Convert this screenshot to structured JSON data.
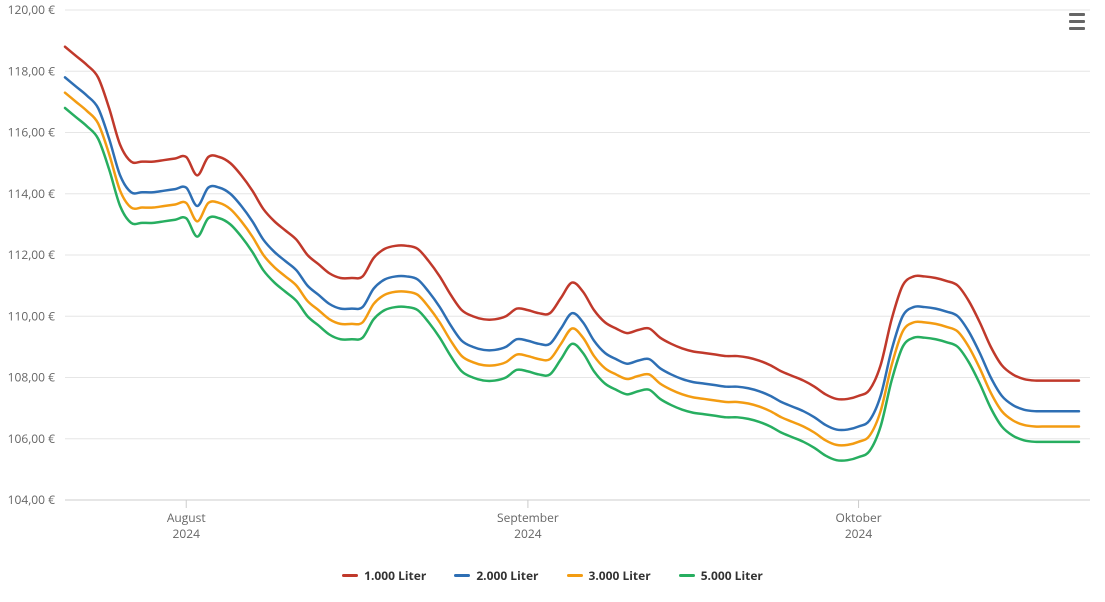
{
  "chart": {
    "type": "line",
    "background": "#ffffff",
    "grid_color": "#e6e6e6",
    "axis_color": "#cccccc",
    "line_width": 2.5,
    "font_family": "Open Sans, Segoe UI, Arial, sans-serif",
    "tick_color": "#666666",
    "tick_fontsize": 12,
    "legend_fontsize": 12,
    "legend_fontweight": 700,
    "legend_color": "#333333",
    "y": {
      "min": 104,
      "max": 120,
      "step": 2,
      "labels": [
        "104,00 €",
        "106,00 €",
        "108,00 €",
        "110,00 €",
        "112,00 €",
        "114,00 €",
        "116,00 €",
        "118,00 €",
        "120,00 €"
      ]
    },
    "x": {
      "min": 0,
      "max": 93,
      "ticks": [
        {
          "pos": 11,
          "month": "August",
          "year": "2024"
        },
        {
          "pos": 42,
          "month": "September",
          "year": "2024"
        },
        {
          "pos": 72,
          "month": "Oktober",
          "year": "2024"
        }
      ]
    },
    "series": [
      {
        "name": "1.000 Liter",
        "color": "#c0392b",
        "data": [
          118.8,
          118.5,
          118.2,
          117.8,
          116.8,
          115.6,
          115.05,
          115.05,
          115.05,
          115.1,
          115.15,
          115.2,
          114.6,
          115.2,
          115.2,
          115.0,
          114.6,
          114.1,
          113.5,
          113.1,
          112.8,
          112.5,
          112.0,
          111.7,
          111.4,
          111.25,
          111.25,
          111.3,
          111.9,
          112.2,
          112.3,
          112.3,
          112.2,
          111.8,
          111.3,
          110.7,
          110.2,
          110.0,
          109.9,
          109.9,
          110.0,
          110.25,
          110.2,
          110.1,
          110.1,
          110.6,
          111.1,
          110.8,
          110.2,
          109.8,
          109.6,
          109.45,
          109.55,
          109.6,
          109.3,
          109.1,
          108.95,
          108.85,
          108.8,
          108.75,
          108.7,
          108.7,
          108.65,
          108.55,
          108.4,
          108.2,
          108.05,
          107.9,
          107.7,
          107.45,
          107.3,
          107.3,
          107.4,
          107.6,
          108.4,
          109.9,
          111.0,
          111.3,
          111.3,
          111.25,
          111.15,
          111.0,
          110.5,
          109.8,
          109.0,
          108.4,
          108.1,
          107.95,
          107.9,
          107.9,
          107.9,
          107.9,
          107.9
        ]
      },
      {
        "name": "2.000 Liter",
        "color": "#2e6fb4",
        "data": [
          117.8,
          117.5,
          117.2,
          116.8,
          115.8,
          114.6,
          114.05,
          114.05,
          114.05,
          114.1,
          114.15,
          114.2,
          113.6,
          114.2,
          114.2,
          114.0,
          113.6,
          113.1,
          112.5,
          112.1,
          111.8,
          111.5,
          111.0,
          110.7,
          110.4,
          110.25,
          110.25,
          110.3,
          110.9,
          111.2,
          111.3,
          111.3,
          111.2,
          110.8,
          110.3,
          109.7,
          109.2,
          109.0,
          108.9,
          108.9,
          109.0,
          109.25,
          109.2,
          109.1,
          109.1,
          109.6,
          110.1,
          109.8,
          109.2,
          108.8,
          108.6,
          108.45,
          108.55,
          108.6,
          108.3,
          108.1,
          107.95,
          107.85,
          107.8,
          107.75,
          107.7,
          107.7,
          107.65,
          107.55,
          107.4,
          107.2,
          107.05,
          106.9,
          106.7,
          106.45,
          106.3,
          106.3,
          106.4,
          106.6,
          107.4,
          108.9,
          110.0,
          110.3,
          110.3,
          110.25,
          110.15,
          110.0,
          109.5,
          108.8,
          108.0,
          107.4,
          107.1,
          106.95,
          106.9,
          106.9,
          106.9,
          106.9,
          106.9
        ]
      },
      {
        "name": "3.000 Liter",
        "color": "#f39c12",
        "data": [
          117.3,
          117.0,
          116.7,
          116.3,
          115.3,
          114.1,
          113.55,
          113.55,
          113.55,
          113.6,
          113.65,
          113.7,
          113.1,
          113.7,
          113.7,
          113.5,
          113.1,
          112.6,
          112.0,
          111.6,
          111.3,
          111.0,
          110.5,
          110.2,
          109.9,
          109.75,
          109.75,
          109.8,
          110.4,
          110.7,
          110.8,
          110.8,
          110.7,
          110.3,
          109.8,
          109.2,
          108.7,
          108.5,
          108.4,
          108.4,
          108.5,
          108.75,
          108.7,
          108.6,
          108.6,
          109.1,
          109.6,
          109.3,
          108.7,
          108.3,
          108.1,
          107.95,
          108.05,
          108.1,
          107.8,
          107.6,
          107.45,
          107.35,
          107.3,
          107.25,
          107.2,
          107.2,
          107.15,
          107.05,
          106.9,
          106.7,
          106.55,
          106.4,
          106.2,
          105.95,
          105.8,
          105.8,
          105.9,
          106.1,
          106.9,
          108.4,
          109.5,
          109.8,
          109.8,
          109.75,
          109.65,
          109.5,
          109.0,
          108.3,
          107.5,
          106.9,
          106.6,
          106.45,
          106.4,
          106.4,
          106.4,
          106.4,
          106.4
        ]
      },
      {
        "name": "5.000 Liter",
        "color": "#27ae60",
        "data": [
          116.8,
          116.5,
          116.2,
          115.8,
          114.8,
          113.6,
          113.05,
          113.05,
          113.05,
          113.1,
          113.15,
          113.2,
          112.6,
          113.2,
          113.2,
          113.0,
          112.6,
          112.1,
          111.5,
          111.1,
          110.8,
          110.5,
          110.0,
          109.7,
          109.4,
          109.25,
          109.25,
          109.3,
          109.9,
          110.2,
          110.3,
          110.3,
          110.2,
          109.8,
          109.3,
          108.7,
          108.2,
          108.0,
          107.9,
          107.9,
          108.0,
          108.25,
          108.2,
          108.1,
          108.1,
          108.6,
          109.1,
          108.8,
          108.2,
          107.8,
          107.6,
          107.45,
          107.55,
          107.6,
          107.3,
          107.1,
          106.95,
          106.85,
          106.8,
          106.75,
          106.7,
          106.7,
          106.65,
          106.55,
          106.4,
          106.2,
          106.05,
          105.9,
          105.7,
          105.45,
          105.3,
          105.3,
          105.4,
          105.6,
          106.4,
          107.9,
          109.0,
          109.3,
          109.3,
          109.25,
          109.15,
          109.0,
          108.5,
          107.8,
          107.0,
          106.4,
          106.1,
          105.95,
          105.9,
          105.9,
          105.9,
          105.9,
          105.9
        ]
      }
    ]
  },
  "menu": {
    "title": "Chart context menu"
  }
}
